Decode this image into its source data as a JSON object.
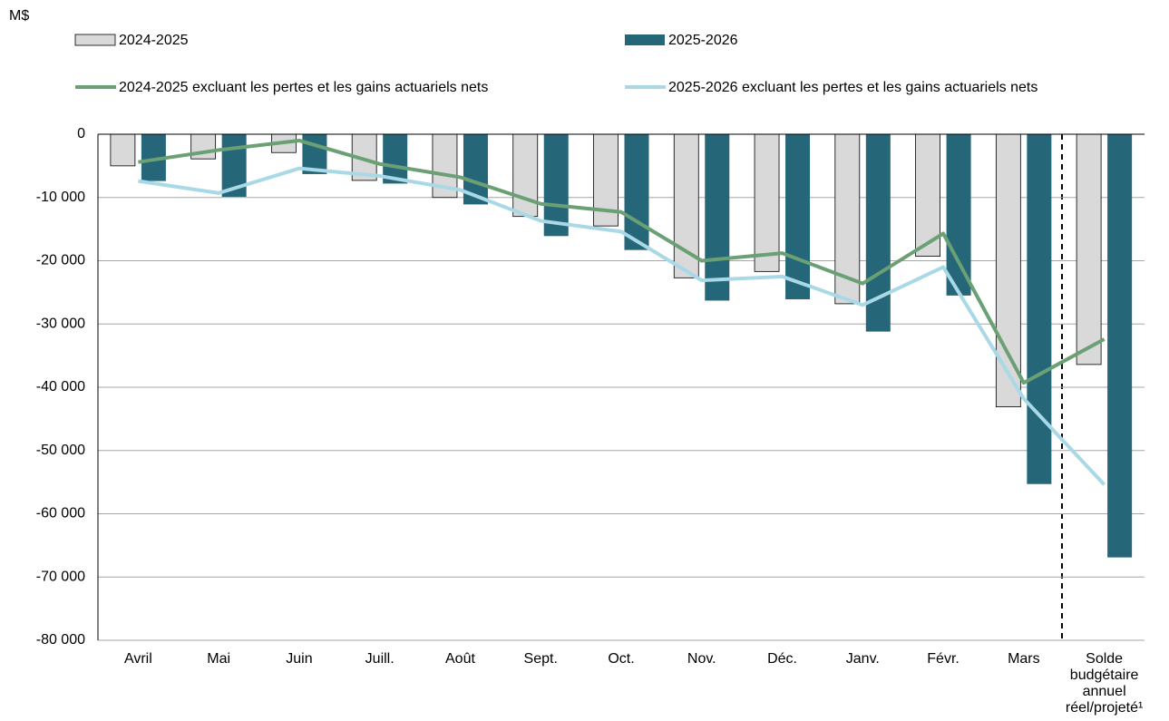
{
  "chart_data": {
    "type": "bar_line",
    "y_label": "M$",
    "categories": [
      "Avril",
      "Mai",
      "Juin",
      "Juill.",
      "Août",
      "Sept.",
      "Oct.",
      "Nov.",
      "Déc.",
      "Janv.",
      "Févr.",
      "Mars",
      "Solde budgétaire annuel réel/projeté¹"
    ],
    "series": [
      {
        "name": "2024-2025",
        "kind": "bar",
        "color": "#d9d9d9",
        "values": [
          -5000,
          -3900,
          -2900,
          -7300,
          -10000,
          -13000,
          -14500,
          -22700,
          -21700,
          -26800,
          -19300,
          -43100,
          -36400
        ]
      },
      {
        "name": "2025-2026",
        "kind": "bar",
        "color": "#256678",
        "values": [
          -7400,
          -9900,
          -6300,
          -7800,
          -11100,
          -16100,
          -18300,
          -26300,
          -26100,
          -31200,
          -25500,
          -55300,
          -66900
        ]
      },
      {
        "name": "2024-2025 excluant les pertes et les gains actuariels nets",
        "kind": "line",
        "color": "#6aa074",
        "values": [
          -4400,
          -2500,
          -1000,
          -4700,
          -6800,
          -11000,
          -12300,
          -20000,
          -18800,
          -23600,
          -15700,
          -39300,
          -32400
        ]
      },
      {
        "name": "2025-2026 excluant les pertes et les gains actuariels nets",
        "kind": "line",
        "color": "#a9d8e6",
        "values": [
          -7400,
          -9300,
          -5400,
          -6600,
          -8800,
          -13700,
          -15400,
          -23100,
          -22500,
          -27000,
          -21000,
          -41800,
          -55400
        ]
      }
    ],
    "ylim": [
      -80000,
      0
    ],
    "yticks": [
      0,
      {
        "value": -10000,
        "label": "-10 000"
      },
      {
        "value": -20000,
        "label": "-20 000"
      },
      {
        "value": -30000,
        "label": "-30 000"
      },
      {
        "value": -40000,
        "label": "-40 000"
      },
      {
        "value": -50000,
        "label": "-50 000"
      },
      {
        "value": -60000,
        "label": "-60 000"
      },
      {
        "value": -70000,
        "label": "-70 000"
      },
      {
        "value": -80000,
        "label": "-80 000"
      }
    ],
    "grid": true
  }
}
